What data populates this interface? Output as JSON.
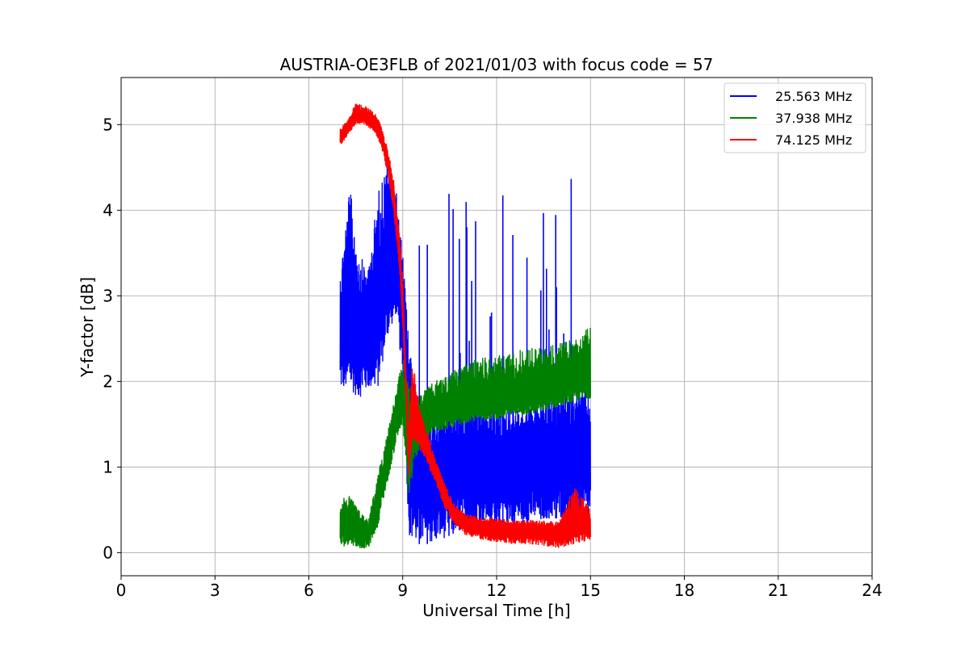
{
  "chart_data": {
    "type": "line",
    "title": "AUSTRIA-OE3FLB of 2021/01/03 with focus code = 57",
    "xlabel": "Universal Time [h]",
    "ylabel": "Y-factor [dB]",
    "xlim": [
      0,
      24
    ],
    "ylim": [
      -0.27,
      5.55
    ],
    "x_ticks": [
      0,
      3,
      6,
      9,
      12,
      15,
      18,
      21,
      24
    ],
    "y_ticks": [
      0,
      1,
      2,
      3,
      4,
      5
    ],
    "grid": true,
    "legend_position": "top-right",
    "series": [
      {
        "name": "25.563 MHz",
        "color": "#0000ff",
        "x": [
          7.0,
          7.3,
          7.6,
          7.9,
          8.2,
          8.5,
          8.8,
          9.0,
          9.2,
          9.4,
          9.7,
          10.0,
          10.5,
          11.0,
          11.5,
          12.0,
          12.5,
          13.0,
          13.5,
          14.0,
          14.5,
          15.0
        ],
        "center": [
          2.5,
          2.8,
          2.6,
          2.7,
          2.9,
          3.3,
          3.3,
          2.7,
          1.5,
          1.0,
          0.8,
          0.9,
          0.95,
          1.0,
          1.0,
          1.0,
          1.0,
          1.0,
          1.0,
          1.05,
          1.1,
          1.1
        ],
        "low": [
          1.9,
          1.9,
          1.8,
          1.9,
          1.9,
          2.5,
          2.8,
          2.0,
          0.2,
          0.1,
          0.1,
          0.1,
          0.2,
          0.3,
          0.35,
          0.35,
          0.35,
          0.35,
          0.4,
          0.4,
          0.4,
          0.4
        ],
        "high": [
          3.3,
          4.3,
          3.5,
          3.3,
          4.2,
          4.6,
          4.2,
          3.5,
          2.5,
          1.8,
          1.7,
          1.7,
          1.7,
          1.7,
          1.7,
          1.7,
          1.7,
          1.7,
          1.8,
          1.8,
          1.9,
          1.9
        ]
      },
      {
        "name": "37.938 MHz",
        "color": "#008000",
        "x": [
          7.0,
          7.3,
          7.6,
          7.9,
          8.2,
          8.5,
          8.8,
          9.0,
          9.2,
          9.4,
          9.7,
          10.0,
          10.5,
          11.0,
          11.5,
          12.0,
          12.5,
          13.0,
          13.5,
          14.0,
          14.5,
          15.0
        ],
        "center": [
          0.3,
          0.35,
          0.25,
          0.2,
          0.6,
          1.1,
          1.6,
          1.7,
          1.2,
          1.4,
          1.5,
          1.6,
          1.65,
          1.7,
          1.75,
          1.75,
          1.8,
          1.8,
          1.85,
          1.9,
          2.0,
          2.1
        ],
        "low": [
          0.05,
          0.1,
          0.05,
          0.05,
          0.3,
          0.8,
          1.3,
          1.5,
          0.6,
          1.1,
          1.3,
          1.4,
          1.45,
          1.5,
          1.55,
          1.55,
          1.6,
          1.6,
          1.65,
          1.7,
          1.75,
          1.8
        ],
        "high": [
          0.6,
          0.7,
          0.5,
          0.4,
          0.9,
          1.4,
          1.9,
          2.3,
          2.0,
          1.8,
          1.9,
          2.0,
          2.1,
          2.2,
          2.3,
          2.3,
          2.35,
          2.4,
          2.4,
          2.45,
          2.5,
          2.65
        ]
      },
      {
        "name": "74.125 MHz",
        "color": "#ff0000",
        "x": [
          7.0,
          7.2,
          7.5,
          7.8,
          8.1,
          8.3,
          8.5,
          8.7,
          8.9,
          9.0,
          9.2,
          9.3,
          9.5,
          9.7,
          10.0,
          10.3,
          10.6,
          11.0,
          11.5,
          12.0,
          12.5,
          13.0,
          13.5,
          14.0,
          14.5,
          15.0
        ],
        "center": [
          4.85,
          4.95,
          5.1,
          5.1,
          5.05,
          4.9,
          4.6,
          4.2,
          3.5,
          2.9,
          1.1,
          1.6,
          1.5,
          1.3,
          1.0,
          0.7,
          0.45,
          0.33,
          0.3,
          0.28,
          0.27,
          0.26,
          0.25,
          0.24,
          0.28,
          0.32
        ],
        "low": [
          4.75,
          4.85,
          5.0,
          4.98,
          4.92,
          4.75,
          4.45,
          4.0,
          3.3,
          2.6,
          0.85,
          1.3,
          1.25,
          1.1,
          0.85,
          0.55,
          0.35,
          0.2,
          0.15,
          0.12,
          0.1,
          0.1,
          0.08,
          0.05,
          0.1,
          0.15
        ],
        "high": [
          4.95,
          5.05,
          5.25,
          5.22,
          5.15,
          5.0,
          4.75,
          4.4,
          3.7,
          3.2,
          1.4,
          2.3,
          1.8,
          1.5,
          1.15,
          0.85,
          0.6,
          0.45,
          0.42,
          0.4,
          0.38,
          0.38,
          0.38,
          0.36,
          0.8,
          0.5
        ]
      }
    ]
  }
}
